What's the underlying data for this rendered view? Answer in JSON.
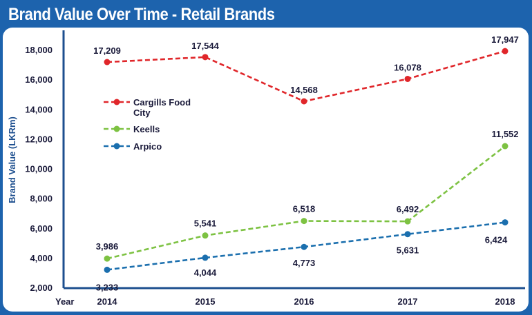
{
  "chart_data": {
    "type": "line",
    "title": "Brand Value Over Time - Retail Brands",
    "xlabel": "Year",
    "ylabel": "Brand Value (LKRm)",
    "ylim": [
      2000,
      19000
    ],
    "yticks": [
      2000,
      4000,
      6000,
      8000,
      10000,
      12000,
      14000,
      16000,
      18000
    ],
    "ytick_labels": [
      "2,000",
      "4,000",
      "6,000",
      "8,000",
      "10,000",
      "12,000",
      "14,000",
      "16,000",
      "18,000"
    ],
    "categories": [
      "2014",
      "2015",
      "2016",
      "2017",
      "2018"
    ],
    "legend_position": "left",
    "grid": false,
    "series": [
      {
        "name": "Cargills Food City",
        "legend_lines": [
          "Cargills Food",
          "City"
        ],
        "color": "#e0262a",
        "values": [
          17209,
          17544,
          14568,
          16078,
          17947
        ],
        "labels": [
          "17,209",
          "17,544",
          "14,568",
          "16,078",
          "17,947"
        ]
      },
      {
        "name": "Keells",
        "legend_lines": [
          "Keells"
        ],
        "color": "#7dc242",
        "values": [
          3986,
          5541,
          6518,
          6492,
          11552
        ],
        "labels": [
          "3,986",
          "5,541",
          "6,518",
          "6,492",
          "11,552"
        ]
      },
      {
        "name": "Arpico",
        "legend_lines": [
          "Arpico"
        ],
        "color": "#1b6fae",
        "values": [
          3233,
          4044,
          4773,
          5631,
          6424
        ],
        "labels": [
          "3,233",
          "4,044",
          "4,773",
          "5,631",
          "6,424"
        ]
      }
    ]
  }
}
